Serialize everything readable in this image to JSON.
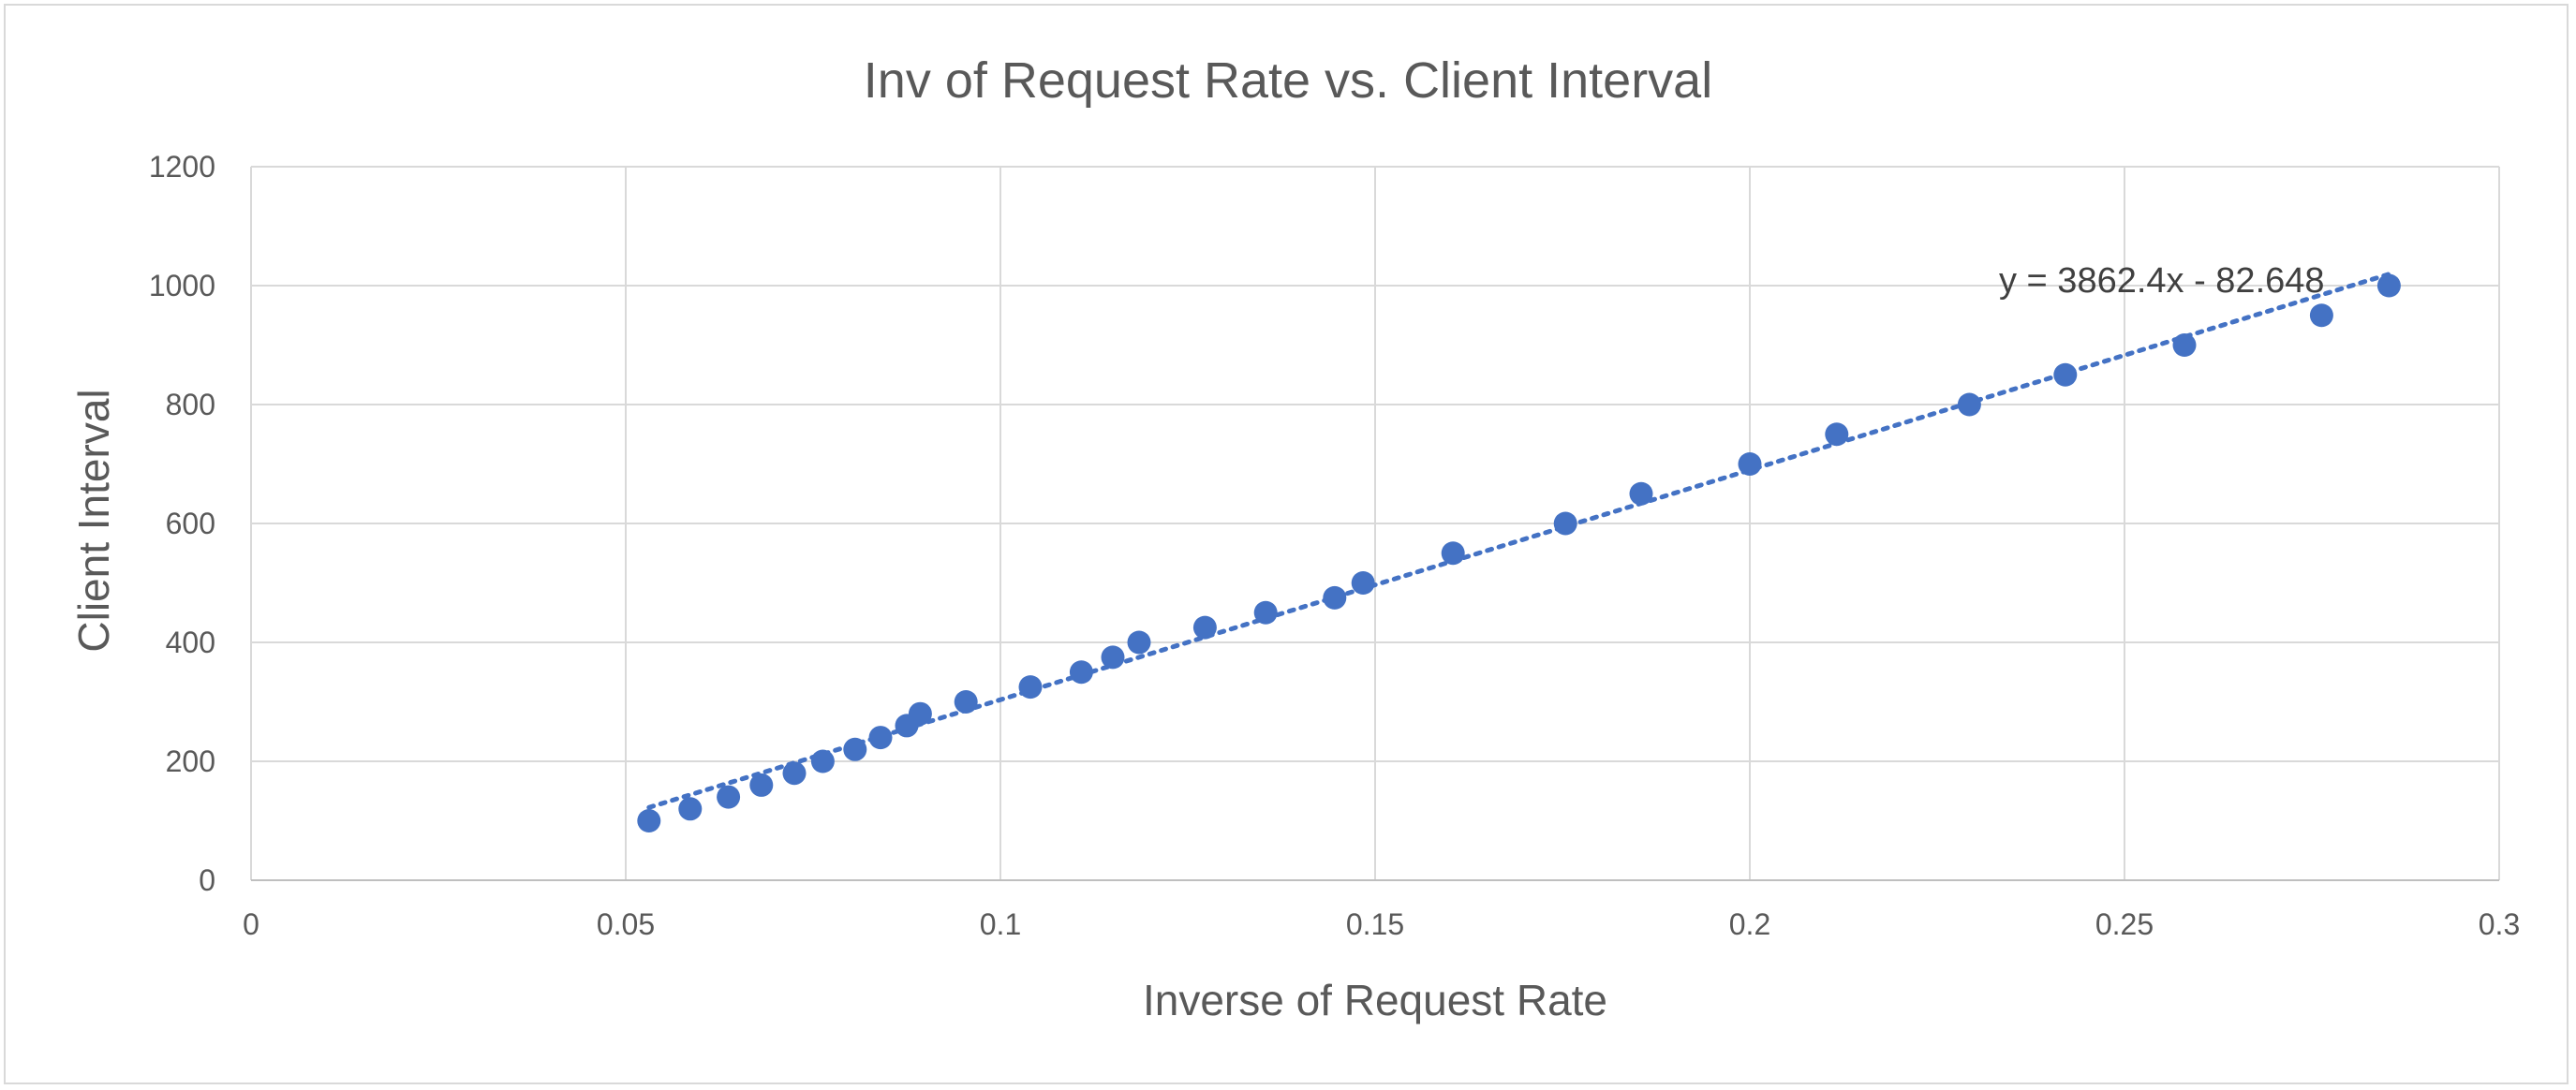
{
  "chart_data": {
    "type": "scatter",
    "title": "Inv of Request Rate vs. Client Interval",
    "xlabel": "Inverse of Request Rate",
    "ylabel": "Client Interval",
    "xlim": [
      0,
      0.3
    ],
    "ylim": [
      0,
      1200
    ],
    "xticks": [
      0,
      0.05,
      0.1,
      0.15,
      0.2,
      0.25,
      0.3
    ],
    "xtick_labels": [
      "0",
      "0.05",
      "0.1",
      "0.15",
      "0.2",
      "0.25",
      "0.3"
    ],
    "yticks": [
      0,
      200,
      400,
      600,
      800,
      1000,
      1200
    ],
    "ytick_labels": [
      "0",
      "200",
      "400",
      "600",
      "800",
      "1000",
      "1200"
    ],
    "grid": true,
    "marker_color": "#4472C4",
    "points": [
      {
        "x": 0.0531,
        "y": 100
      },
      {
        "x": 0.0586,
        "y": 120
      },
      {
        "x": 0.0637,
        "y": 140
      },
      {
        "x": 0.0681,
        "y": 160
      },
      {
        "x": 0.0725,
        "y": 180
      },
      {
        "x": 0.0763,
        "y": 200
      },
      {
        "x": 0.0806,
        "y": 220
      },
      {
        "x": 0.084,
        "y": 240
      },
      {
        "x": 0.0875,
        "y": 260
      },
      {
        "x": 0.0893,
        "y": 280
      },
      {
        "x": 0.0954,
        "y": 300
      },
      {
        "x": 0.104,
        "y": 325
      },
      {
        "x": 0.1108,
        "y": 350
      },
      {
        "x": 0.115,
        "y": 375
      },
      {
        "x": 0.1185,
        "y": 400
      },
      {
        "x": 0.1273,
        "y": 425
      },
      {
        "x": 0.1354,
        "y": 450
      },
      {
        "x": 0.1446,
        "y": 475
      },
      {
        "x": 0.1484,
        "y": 500
      },
      {
        "x": 0.1604,
        "y": 550
      },
      {
        "x": 0.1754,
        "y": 600
      },
      {
        "x": 0.1855,
        "y": 650
      },
      {
        "x": 0.2,
        "y": 700
      },
      {
        "x": 0.2116,
        "y": 750
      },
      {
        "x": 0.2293,
        "y": 800
      },
      {
        "x": 0.2421,
        "y": 850
      },
      {
        "x": 0.258,
        "y": 900
      },
      {
        "x": 0.2763,
        "y": 950
      },
      {
        "x": 0.2853,
        "y": 1000
      }
    ],
    "trendline": {
      "type": "linear",
      "slope": 3862.4,
      "intercept": -82.648,
      "x_range": [
        0.0531,
        0.2853
      ],
      "style": "dotted",
      "color": "#4472C4",
      "label": "y = 3862.4x - 82.648"
    }
  }
}
